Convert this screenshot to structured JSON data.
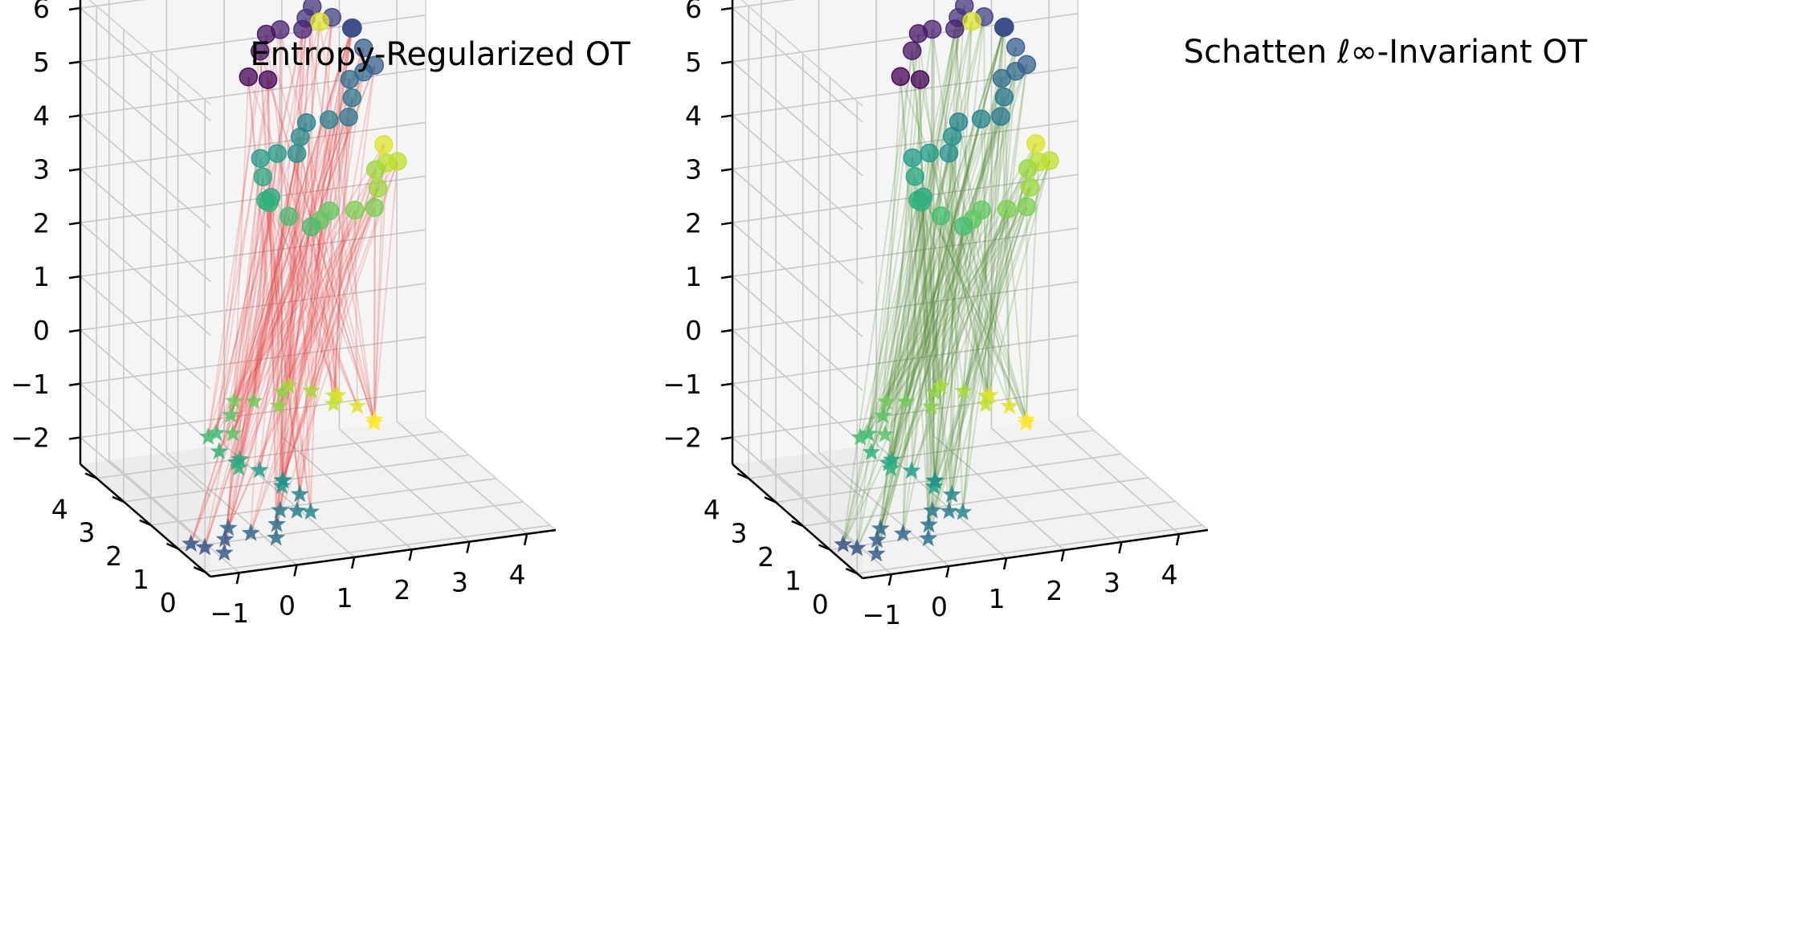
{
  "chart_data": [
    {
      "type": "scatter3d",
      "title": "Entropy-Regularized OT",
      "xlabel": "",
      "ylabel": "",
      "zlabel": "",
      "xlim": [
        -1.5,
        4.5
      ],
      "ylim": [
        -0.2,
        4.6
      ],
      "zlim": [
        -2.5,
        6.3
      ],
      "x_ticks": [
        -1,
        0,
        1,
        2,
        3,
        4
      ],
      "y_ticks": [
        0,
        1,
        2,
        3,
        4
      ],
      "z_ticks": [
        -2,
        -1,
        0,
        1,
        2,
        3,
        4,
        5,
        6
      ],
      "grid": true,
      "source_marker": "circle",
      "target_marker": "star",
      "colormap": "viridis",
      "coupling_color": "#e8474a",
      "source_points": [
        [
          0.95,
          3.6,
          4.8
        ],
        [
          1.15,
          3.6,
          5.25
        ],
        [
          1.5,
          3.6,
          5.6
        ],
        [
          1.95,
          3.6,
          5.75
        ],
        [
          2.4,
          3.6,
          5.7
        ],
        [
          2.75,
          3.6,
          5.45
        ],
        [
          2.95,
          3.6,
          5.05
        ],
        [
          2.95,
          3.6,
          4.6
        ],
        [
          2.75,
          3.6,
          4.15
        ],
        [
          2.35,
          3.6,
          3.8
        ],
        [
          1.85,
          3.6,
          3.55
        ],
        [
          1.45,
          3.6,
          3.3
        ],
        [
          1.2,
          3.6,
          2.9
        ],
        [
          1.25,
          3.6,
          2.45
        ],
        [
          1.65,
          3.6,
          2.1
        ],
        [
          2.2,
          3.6,
          1.95
        ],
        [
          2.8,
          3.6,
          2.05
        ],
        [
          3.2,
          3.6,
          2.4
        ],
        [
          3.35,
          3.6,
          2.85
        ],
        [
          3.3,
          3.6,
          3.2
        ],
        [
          1.1,
          3.2,
          4.9
        ],
        [
          1.4,
          3.9,
          5.4
        ],
        [
          1.75,
          3.3,
          5.7
        ],
        [
          2.2,
          3.9,
          5.8
        ],
        [
          2.6,
          3.3,
          5.6
        ],
        [
          2.9,
          3.9,
          5.3
        ],
        [
          3.0,
          3.3,
          4.85
        ],
        [
          2.85,
          3.9,
          4.35
        ],
        [
          2.55,
          3.3,
          3.95
        ],
        [
          2.1,
          3.9,
          3.65
        ],
        [
          1.65,
          3.3,
          3.4
        ],
        [
          1.3,
          3.9,
          3.1
        ],
        [
          1.2,
          3.3,
          2.65
        ],
        [
          1.45,
          3.9,
          2.25
        ],
        [
          1.9,
          3.3,
          2.0
        ],
        [
          2.5,
          3.9,
          1.95
        ],
        [
          3.0,
          3.3,
          2.2
        ],
        [
          3.3,
          3.9,
          2.6
        ],
        [
          3.4,
          3.3,
          3.0
        ],
        [
          2.0,
          3.2,
          5.85
        ]
      ],
      "target_points": [
        [
          2.2,
          1.6,
          -0.9
        ],
        [
          1.9,
          1.6,
          -0.6
        ],
        [
          1.5,
          1.6,
          -0.35
        ],
        [
          1.1,
          1.6,
          -0.2
        ],
        [
          0.6,
          1.6,
          -0.15
        ],
        [
          0.1,
          1.6,
          -0.25
        ],
        [
          -0.3,
          1.6,
          -0.45
        ],
        [
          -0.55,
          1.6,
          -0.75
        ],
        [
          -0.5,
          1.6,
          -1.1
        ],
        [
          -0.2,
          1.6,
          -1.35
        ],
        [
          0.2,
          1.6,
          -1.55
        ],
        [
          0.6,
          1.6,
          -1.8
        ],
        [
          0.9,
          1.6,
          -2.1
        ],
        [
          0.85,
          1.6,
          -2.4
        ],
        [
          0.5,
          1.6,
          -2.6
        ],
        [
          0.05,
          1.6,
          -2.7
        ],
        [
          -0.4,
          1.6,
          -2.75
        ],
        [
          -0.75,
          1.6,
          -2.85
        ],
        [
          2.0,
          1.2,
          -0.75
        ],
        [
          1.7,
          1.9,
          -0.5
        ],
        [
          1.3,
          1.2,
          -0.3
        ],
        [
          0.85,
          1.9,
          -0.2
        ],
        [
          0.35,
          1.2,
          -0.2
        ],
        [
          -0.1,
          1.9,
          -0.35
        ],
        [
          -0.45,
          1.2,
          -0.6
        ],
        [
          -0.55,
          1.9,
          -0.95
        ],
        [
          -0.35,
          1.2,
          -1.25
        ],
        [
          0.0,
          1.9,
          -1.45
        ],
        [
          0.4,
          1.2,
          -1.7
        ],
        [
          0.75,
          1.9,
          -1.95
        ],
        [
          0.9,
          1.2,
          -2.25
        ],
        [
          0.7,
          1.9,
          -2.5
        ],
        [
          0.3,
          1.2,
          -2.65
        ],
        [
          -0.2,
          1.9,
          -2.7
        ],
        [
          -0.6,
          1.2,
          -2.8
        ],
        [
          -0.85,
          1.9,
          -2.9
        ]
      ],
      "links_per_point": 4
    },
    {
      "type": "scatter3d",
      "title": "Schatten ℓ∞-Invariant OT",
      "xlabel": "",
      "ylabel": "",
      "zlabel": "",
      "xlim": [
        -1.5,
        4.5
      ],
      "ylim": [
        -0.2,
        4.6
      ],
      "zlim": [
        -2.5,
        6.3
      ],
      "x_ticks": [
        -1,
        0,
        1,
        2,
        3,
        4
      ],
      "y_ticks": [
        0,
        1,
        2,
        3,
        4
      ],
      "z_ticks": [
        -2,
        -1,
        0,
        1,
        2,
        3,
        4,
        5,
        6
      ],
      "grid": true,
      "source_marker": "circle",
      "target_marker": "star",
      "colormap": "viridis",
      "coupling_color": "#4e8a2e",
      "source_points": [
        [
          0.95,
          3.6,
          4.8
        ],
        [
          1.15,
          3.6,
          5.25
        ],
        [
          1.5,
          3.6,
          5.6
        ],
        [
          1.95,
          3.6,
          5.75
        ],
        [
          2.4,
          3.6,
          5.7
        ],
        [
          2.75,
          3.6,
          5.45
        ],
        [
          2.95,
          3.6,
          5.05
        ],
        [
          2.95,
          3.6,
          4.6
        ],
        [
          2.75,
          3.6,
          4.15
        ],
        [
          2.35,
          3.6,
          3.8
        ],
        [
          1.85,
          3.6,
          3.55
        ],
        [
          1.45,
          3.6,
          3.3
        ],
        [
          1.2,
          3.6,
          2.9
        ],
        [
          1.25,
          3.6,
          2.45
        ],
        [
          1.65,
          3.6,
          2.1
        ],
        [
          2.2,
          3.6,
          1.95
        ],
        [
          2.8,
          3.6,
          2.05
        ],
        [
          3.2,
          3.6,
          2.4
        ],
        [
          3.35,
          3.6,
          2.85
        ],
        [
          3.3,
          3.6,
          3.2
        ],
        [
          1.1,
          3.2,
          4.9
        ],
        [
          1.4,
          3.9,
          5.4
        ],
        [
          1.75,
          3.3,
          5.7
        ],
        [
          2.2,
          3.9,
          5.8
        ],
        [
          2.6,
          3.3,
          5.6
        ],
        [
          2.9,
          3.9,
          5.3
        ],
        [
          3.0,
          3.3,
          4.85
        ],
        [
          2.85,
          3.9,
          4.35
        ],
        [
          2.55,
          3.3,
          3.95
        ],
        [
          2.1,
          3.9,
          3.65
        ],
        [
          1.65,
          3.3,
          3.4
        ],
        [
          1.3,
          3.9,
          3.1
        ],
        [
          1.2,
          3.3,
          2.65
        ],
        [
          1.45,
          3.9,
          2.25
        ],
        [
          1.9,
          3.3,
          2.0
        ],
        [
          2.5,
          3.9,
          1.95
        ],
        [
          3.0,
          3.3,
          2.2
        ],
        [
          3.3,
          3.9,
          2.6
        ],
        [
          3.4,
          3.3,
          3.0
        ],
        [
          2.0,
          3.2,
          5.85
        ]
      ],
      "target_points": [
        [
          2.2,
          1.6,
          -0.9
        ],
        [
          1.9,
          1.6,
          -0.6
        ],
        [
          1.5,
          1.6,
          -0.35
        ],
        [
          1.1,
          1.6,
          -0.2
        ],
        [
          0.6,
          1.6,
          -0.15
        ],
        [
          0.1,
          1.6,
          -0.25
        ],
        [
          -0.3,
          1.6,
          -0.45
        ],
        [
          -0.55,
          1.6,
          -0.75
        ],
        [
          -0.5,
          1.6,
          -1.1
        ],
        [
          -0.2,
          1.6,
          -1.35
        ],
        [
          0.2,
          1.6,
          -1.55
        ],
        [
          0.6,
          1.6,
          -1.8
        ],
        [
          0.9,
          1.6,
          -2.1
        ],
        [
          0.85,
          1.6,
          -2.4
        ],
        [
          0.5,
          1.6,
          -2.6
        ],
        [
          0.05,
          1.6,
          -2.7
        ],
        [
          -0.4,
          1.6,
          -2.75
        ],
        [
          -0.75,
          1.6,
          -2.85
        ],
        [
          2.0,
          1.2,
          -0.75
        ],
        [
          1.7,
          1.9,
          -0.5
        ],
        [
          1.3,
          1.2,
          -0.3
        ],
        [
          0.85,
          1.9,
          -0.2
        ],
        [
          0.35,
          1.2,
          -0.2
        ],
        [
          -0.1,
          1.9,
          -0.35
        ],
        [
          -0.45,
          1.2,
          -0.6
        ],
        [
          -0.55,
          1.9,
          -0.95
        ],
        [
          -0.35,
          1.2,
          -1.25
        ],
        [
          0.0,
          1.9,
          -1.45
        ],
        [
          0.4,
          1.2,
          -1.7
        ],
        [
          0.75,
          1.9,
          -1.95
        ],
        [
          0.9,
          1.2,
          -2.25
        ],
        [
          0.7,
          1.9,
          -2.5
        ],
        [
          0.3,
          1.2,
          -2.65
        ],
        [
          -0.2,
          1.9,
          -2.7
        ],
        [
          -0.6,
          1.2,
          -2.8
        ],
        [
          -0.85,
          1.9,
          -2.9
        ]
      ],
      "links_per_point": 4
    }
  ]
}
